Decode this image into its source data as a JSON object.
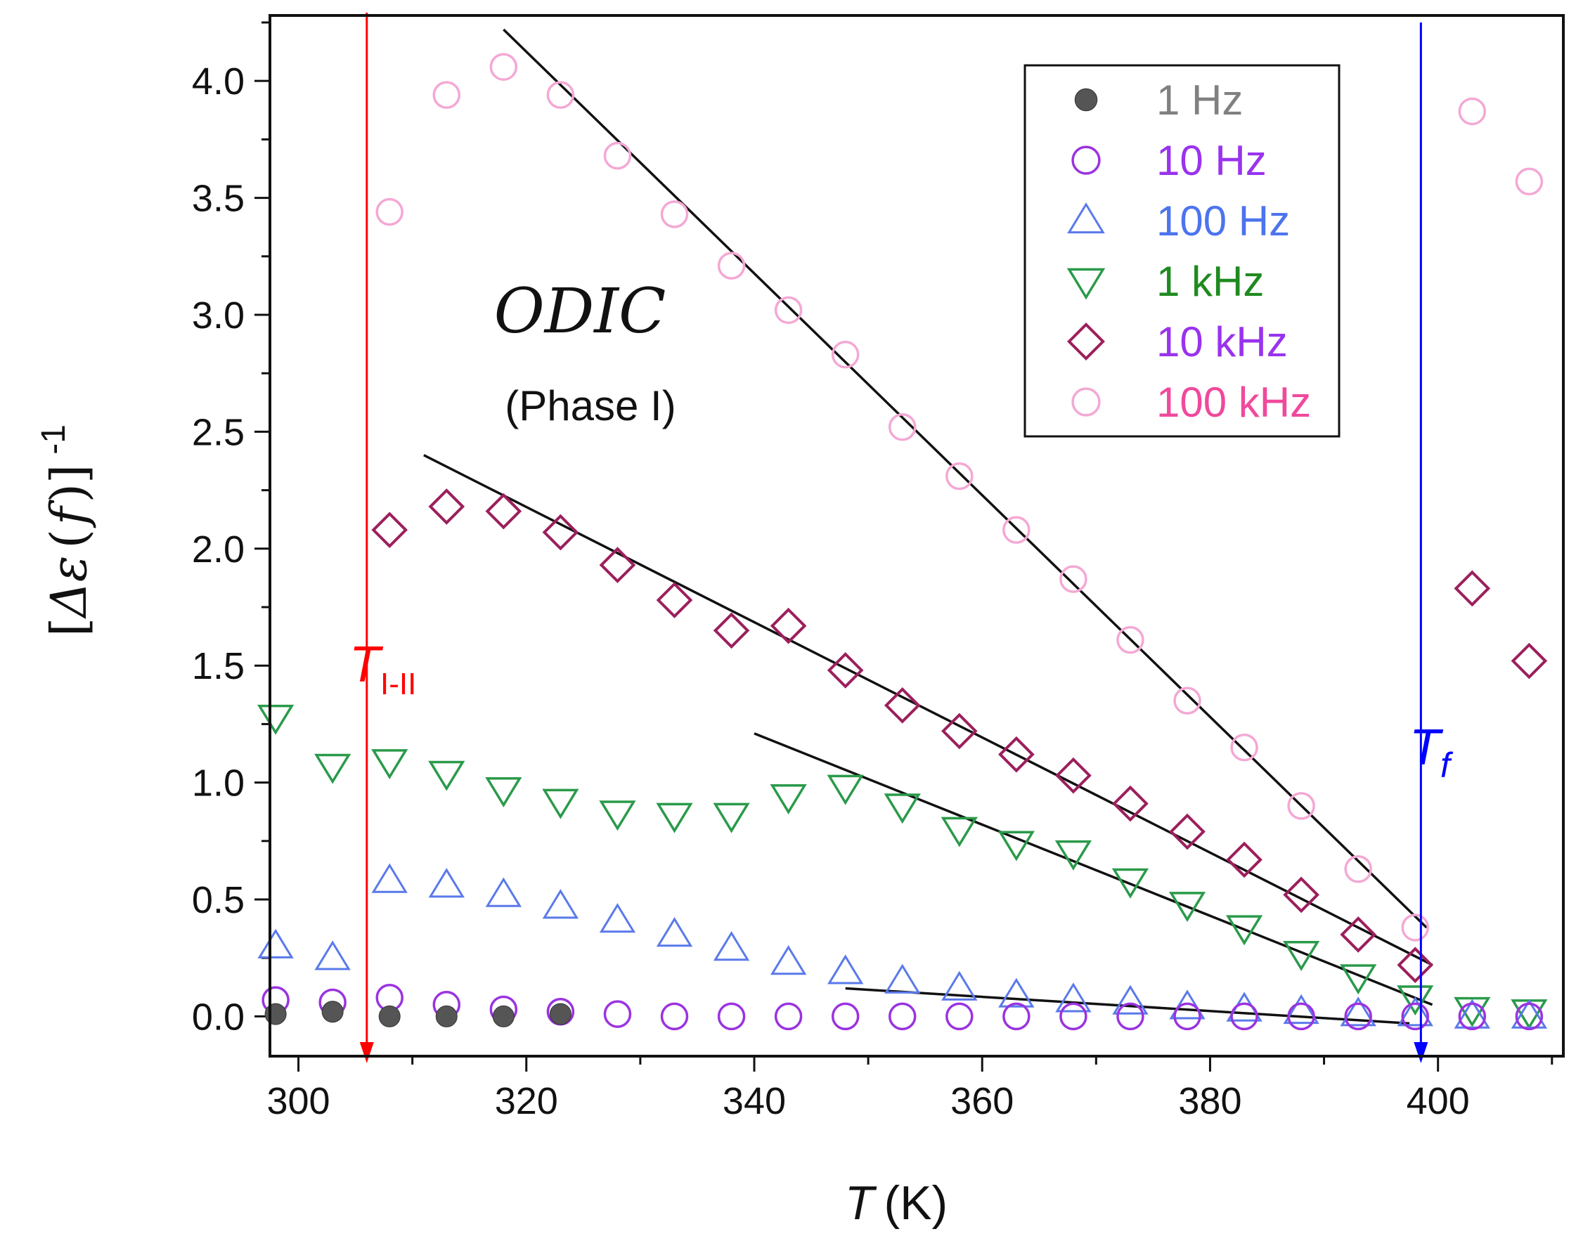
{
  "chart_data": {
    "type": "scatter",
    "title": "",
    "xlabel": "T (K)",
    "xlabel_parts": {
      "symbol": "T",
      "unit": "(K)"
    },
    "ylabel": "[Δε ( f )]⁻¹",
    "ylabel_parts": {
      "open": "[",
      "symbol": "Δε",
      "paren_open": "(",
      "f": "f",
      "paren_close": ")",
      "close": "]",
      "exponent": "-1"
    },
    "xlim": [
      297.5,
      411
    ],
    "ylim": [
      -0.17,
      4.28
    ],
    "xticks": [
      300,
      320,
      340,
      360,
      380,
      400
    ],
    "xtick_labels": [
      "300",
      "320",
      "340",
      "360",
      "380",
      "400"
    ],
    "yticks": [
      0.0,
      0.5,
      1.0,
      1.5,
      2.0,
      2.5,
      3.0,
      3.5,
      4.0
    ],
    "ytick_labels": [
      "0.0",
      "0.5",
      "1.0",
      "1.5",
      "2.0",
      "2.5",
      "3.0",
      "3.5",
      "4.0"
    ],
    "grid": false,
    "legend_position": "top-right",
    "series": [
      {
        "name": "1 Hz",
        "marker": "filled-circle",
        "color": "#555555",
        "text_color": "#808080",
        "x": [
          298,
          303,
          308,
          313,
          318,
          323
        ],
        "y": [
          0.01,
          0.02,
          0.0,
          0.0,
          0.0,
          0.01
        ]
      },
      {
        "name": "10 Hz",
        "marker": "circle",
        "color": "#9a33e0",
        "text_color": "#9933ee",
        "x": [
          298,
          303,
          308,
          313,
          318,
          323,
          328,
          333,
          338,
          343,
          348,
          353,
          358,
          363,
          368,
          373,
          378,
          383,
          388,
          393,
          398,
          403,
          408
        ],
        "y": [
          0.07,
          0.06,
          0.08,
          0.05,
          0.03,
          0.02,
          0.01,
          0.0,
          0.0,
          0.0,
          0.0,
          0.0,
          0.0,
          0.0,
          0.0,
          0.0,
          0.0,
          0.0,
          0.0,
          0.0,
          0.0,
          0.0,
          0.0
        ]
      },
      {
        "name": "100 Hz",
        "marker": "triangle-up",
        "color": "#5a79ea",
        "text_color": "#4d74ee",
        "x": [
          298,
          303,
          308,
          313,
          318,
          323,
          328,
          333,
          338,
          343,
          348,
          353,
          358,
          363,
          368,
          373,
          378,
          383,
          388,
          393,
          398,
          403,
          408
        ],
        "y": [
          0.3,
          0.25,
          0.58,
          0.56,
          0.52,
          0.47,
          0.41,
          0.35,
          0.29,
          0.23,
          0.19,
          0.15,
          0.12,
          0.09,
          0.07,
          0.06,
          0.04,
          0.03,
          0.02,
          0.01,
          0.01,
          0.0,
          0.0
        ]
      },
      {
        "name": "1 kHz",
        "marker": "triangle-down",
        "color": "#2a9a4a",
        "text_color": "#1f8a1f",
        "x": [
          298,
          303,
          308,
          313,
          318,
          323,
          328,
          333,
          338,
          343,
          348,
          353,
          358,
          363,
          368,
          373,
          378,
          383,
          388,
          393,
          398,
          403,
          408
        ],
        "y": [
          1.28,
          1.07,
          1.09,
          1.04,
          0.97,
          0.92,
          0.87,
          0.86,
          0.86,
          0.94,
          0.98,
          0.9,
          0.8,
          0.74,
          0.7,
          0.58,
          0.48,
          0.38,
          0.27,
          0.17,
          0.08,
          0.03,
          0.02
        ]
      },
      {
        "name": "10 kHz",
        "marker": "diamond",
        "color": "#9c1f5c",
        "text_color": "#9933ee",
        "x": [
          308,
          313,
          318,
          323,
          328,
          333,
          338,
          343,
          348,
          353,
          358,
          363,
          368,
          373,
          378,
          383,
          388,
          393,
          398,
          403,
          408
        ],
        "y": [
          2.08,
          2.18,
          2.16,
          2.07,
          1.93,
          1.78,
          1.65,
          1.67,
          1.48,
          1.33,
          1.22,
          1.12,
          1.03,
          0.91,
          0.79,
          0.67,
          0.52,
          0.35,
          0.22,
          1.83,
          1.52
        ]
      },
      {
        "name": "100 kHz",
        "marker": "circle",
        "color": "#f4a8d4",
        "text_color": "#f0499c",
        "x": [
          308,
          313,
          318,
          323,
          328,
          333,
          338,
          343,
          348,
          353,
          358,
          363,
          368,
          373,
          378,
          383,
          388,
          393,
          398,
          403,
          408
        ],
        "y": [
          3.44,
          3.94,
          4.06,
          3.94,
          3.68,
          3.43,
          3.21,
          3.02,
          2.83,
          2.52,
          2.31,
          2.08,
          1.87,
          1.61,
          1.35,
          1.15,
          0.9,
          0.63,
          0.38,
          3.87,
          3.57
        ]
      }
    ],
    "fit_lines": [
      {
        "name": "fit-100kHz",
        "x": [
          318,
          399
        ],
        "y": [
          4.22,
          0.38
        ]
      },
      {
        "name": "fit-10kHz",
        "x": [
          311,
          399.5
        ],
        "y": [
          2.4,
          0.22
        ]
      },
      {
        "name": "fit-1kHz",
        "x": [
          340,
          399.5
        ],
        "y": [
          1.21,
          0.05
        ]
      },
      {
        "name": "fit-100Hz",
        "x": [
          348,
          397.5
        ],
        "y": [
          0.12,
          -0.03
        ]
      }
    ],
    "vertical_markers": [
      {
        "name": "T_I-II",
        "x": 306.0,
        "color": "#ff0000",
        "label_main": "T",
        "label_sub": "I-II"
      },
      {
        "name": "T_f",
        "x": 398.5,
        "color": "#0000ff",
        "label_main": "T",
        "label_sub": "f"
      }
    ],
    "annotations": [
      {
        "name": "odic",
        "text": "ODIC"
      },
      {
        "name": "phase",
        "text": "(Phase I)"
      }
    ]
  }
}
